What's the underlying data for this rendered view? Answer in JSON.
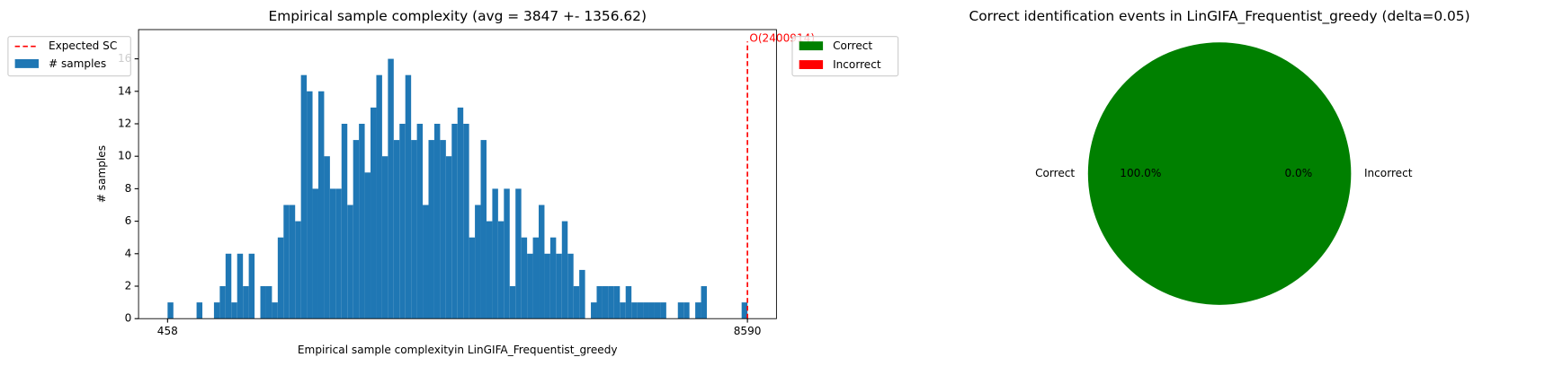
{
  "chart_data": [
    {
      "type": "histogram",
      "title": "Empirical sample complexity (avg = 3847 +- 1356.62)",
      "x_label": "Empirical sample complexityin LinGIFA_Frequentist_greedy",
      "y_label": "# samples",
      "series": [
        {
          "name": "# samples",
          "color": "#1f77b4",
          "bins": [
            458,
            539.32,
            620.64,
            701.96,
            783.28,
            864.6,
            945.92,
            1027.24,
            1108.56,
            1189.88,
            1271.2,
            1352.52,
            1433.84,
            1515.16,
            1596.48,
            1677.8,
            1759.12,
            1840.44,
            1921.76,
            2003.08,
            2084.4,
            2165.72,
            2247.04,
            2328.36,
            2409.68,
            2491,
            2572.32,
            2653.64,
            2734.96,
            2816.28,
            2897.6,
            2978.92,
            3060.24,
            3141.56,
            3222.88,
            3304.2,
            3385.52,
            3466.84,
            3548.16,
            3629.48,
            3710.8,
            3792.12,
            3873.44,
            3954.76,
            4036.08,
            4117.4,
            4198.72,
            4280.04,
            4361.36,
            4442.68,
            4524,
            4605.32,
            4686.64,
            4767.96,
            4849.28,
            4930.6,
            5011.92,
            5093.24,
            5174.56,
            5255.88,
            5337.2,
            5418.52,
            5499.84,
            5581.16,
            5662.48,
            5743.8,
            5825.12,
            5906.44,
            5987.76,
            6069.08,
            6150.4,
            6231.72,
            6313.04,
            6394.36,
            6475.68,
            6557,
            6638.32,
            6719.64,
            6800.96,
            6882.28,
            6963.6,
            7044.92,
            7126.24,
            7207.56,
            7288.88,
            7370.2,
            7451.52,
            7532.84,
            7614.16,
            7695.48,
            7776.8,
            7858.12,
            7939.44,
            8020.76,
            8102.08,
            8183.4,
            8264.72,
            8346.04,
            8427.36,
            8508.68,
            8590
          ],
          "values": [
            1,
            0,
            0,
            0,
            0,
            1,
            0,
            0,
            1,
            2,
            4,
            1,
            4,
            2,
            4,
            0,
            2,
            2,
            1,
            5,
            7,
            7,
            6,
            15,
            14,
            8,
            14,
            10,
            8,
            8,
            12,
            7,
            11,
            12,
            9,
            13,
            15,
            10,
            16,
            11,
            12,
            15,
            11,
            12,
            7,
            11,
            12,
            11,
            10,
            12,
            13,
            12,
            5,
            7,
            11,
            6,
            8,
            6,
            8,
            2,
            8,
            5,
            4,
            5,
            7,
            4,
            5,
            4,
            6,
            4,
            2,
            3,
            0,
            1,
            2,
            2,
            2,
            2,
            1,
            2,
            1,
            1,
            1,
            1,
            1,
            1,
            0,
            0,
            1,
            1,
            0,
            1,
            2,
            0,
            0,
            0,
            0,
            0,
            0,
            1
          ]
        }
      ],
      "reference_line": {
        "name": "Expected SC",
        "x": 8590,
        "label": "O(2400914)",
        "color": "#ff0000"
      },
      "xlim": [
        51,
        8997
      ],
      "xticks": [
        458,
        8590
      ],
      "ylim": [
        0,
        17.8
      ],
      "yticks": [
        0,
        2,
        4,
        6,
        8,
        10,
        12,
        14,
        16
      ],
      "legend": "upper left"
    },
    {
      "type": "pie",
      "title": "Correct identification events in LinGIFA_Frequentist_greedy (delta=0.05)",
      "categories": [
        "Correct",
        "Incorrect"
      ],
      "values": [
        100,
        0
      ],
      "value_labels": [
        "100.0%",
        "0.0%"
      ],
      "colors": [
        "#008000",
        "#ff0000"
      ],
      "legend": "upper left"
    }
  ]
}
